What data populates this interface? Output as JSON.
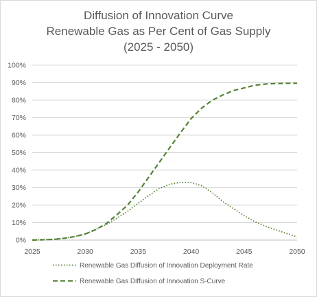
{
  "chart_data": {
    "type": "line",
    "title": [
      "Diffusion of Innovation Curve",
      "Renewable Gas as Per Cent of Gas Supply",
      "(2025 - 2050)"
    ],
    "xlabel": "",
    "ylabel": "",
    "xlim": [
      2025,
      2050
    ],
    "ylim": [
      0,
      100
    ],
    "x_ticks": [
      "2025",
      "2030",
      "2035",
      "2040",
      "2045",
      "2050"
    ],
    "y_ticks": [
      "0%",
      "10%",
      "20%",
      "30%",
      "40%",
      "50%",
      "60%",
      "70%",
      "80%",
      "90%",
      "100%"
    ],
    "grid": "horizontal",
    "legend_position": "bottom",
    "x": [
      2025,
      2026,
      2027,
      2028,
      2029,
      2030,
      2031,
      2032,
      2033,
      2034,
      2035,
      2036,
      2037,
      2038,
      2039,
      2040,
      2041,
      2042,
      2043,
      2044,
      2045,
      2046,
      2047,
      2048,
      2049,
      2050
    ],
    "series": [
      {
        "name": "Renewable Gas Diffusion of Innovation Deployment Rate",
        "style": "dotted",
        "color": "#548235",
        "values": [
          0,
          0.2,
          0.4,
          1,
          2,
          3.5,
          6,
          9,
          12.5,
          16.5,
          21,
          25.5,
          29.5,
          32,
          33,
          33,
          31,
          27,
          22,
          18,
          14,
          10.5,
          8,
          5.8,
          3.8,
          1.8
        ]
      },
      {
        "name": "Renewable Gas Diffusion of Innovation S-Curve",
        "style": "dashed",
        "color": "#548235",
        "values": [
          0,
          0.2,
          0.4,
          1,
          2,
          3.5,
          6,
          9.5,
          14.5,
          20,
          27.5,
          36,
          44.5,
          53,
          61.5,
          69.5,
          75.5,
          80,
          83,
          85.5,
          87,
          88.5,
          89.2,
          89.5,
          89.6,
          89.7
        ]
      }
    ]
  }
}
